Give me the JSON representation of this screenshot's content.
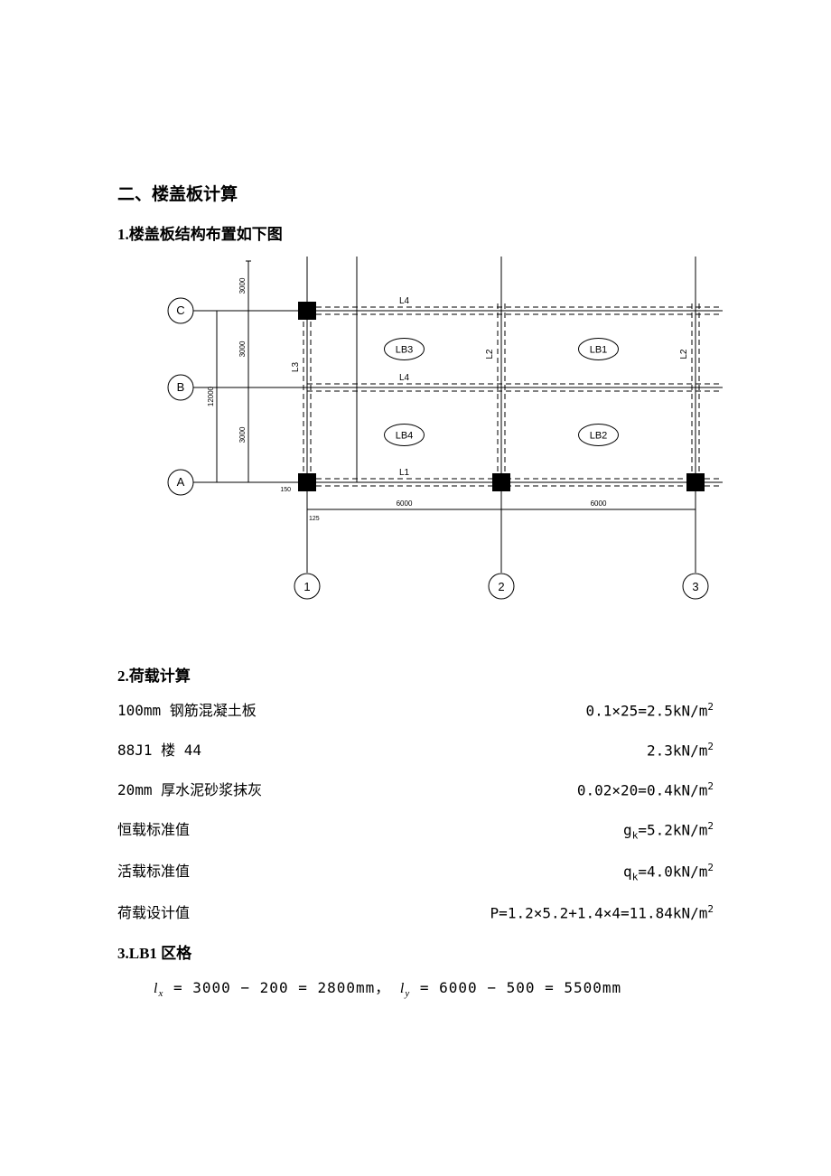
{
  "title_section": "二、楼盖板计算",
  "title_sub1": "1.楼盖板结构布置如下图",
  "title_sub2": "2.荷载计算",
  "title_sub3": "3.LB1 区格",
  "diagram": {
    "background_color": "#ffffff",
    "line_color": "#000000",
    "fill_column": "#000000",
    "row_grid_labels": [
      "C",
      "B",
      "A"
    ],
    "col_grid_labels": [
      "1",
      "2",
      "3"
    ],
    "slab_labels": [
      "LB1",
      "LB2",
      "LB3",
      "LB4"
    ],
    "beam_labels": [
      "L1",
      "L2",
      "L3",
      "L4"
    ],
    "dim_v1": "12000",
    "dim_v_half_top": "3000",
    "dim_v_half_mid": "3000",
    "dim_v_half_bot": "3000",
    "dim_h1": "6000",
    "dim_h2": "6000",
    "dim_edge1": "150",
    "dim_edge2": "125",
    "grid_bubble_radius": 14,
    "column_size": 20,
    "dash_pattern": "6,4"
  },
  "loads": [
    {
      "label": "100mm 钢筋混凝土板",
      "value_prefix": "0.1×25=2.5kN/m",
      "value_sup": "2"
    },
    {
      "label": "88J1 楼 44",
      "value_prefix": "2.3kN/m",
      "value_sup": "2"
    },
    {
      "label": "20mm 厚水泥砂浆抹灰",
      "value_prefix": "0.02×20=0.4kN/m",
      "value_sup": "2"
    },
    {
      "label": "恒载标准值",
      "value_prefix_html": "g",
      "value_sub": "k",
      "value_rest": "=5.2kN/m",
      "value_sup": "2"
    },
    {
      "label": "活载标准值",
      "value_prefix_html": "q",
      "value_sub": "k",
      "value_rest": "=4.0kN/m",
      "value_sup": "2"
    },
    {
      "label": "荷载设计值",
      "value_prefix": "P=1.2×5.2+1.4×4=11.84kN/m",
      "value_sup": "2"
    }
  ],
  "formula": {
    "lx": "l",
    "lx_sub": "x",
    "lx_expr": " = 3000 − 200 = 2800",
    "unit_mm": "mm",
    "sep": "， ",
    "ly": "l",
    "ly_sub": "y",
    "ly_expr": " = 6000 − 500 = 5500"
  }
}
